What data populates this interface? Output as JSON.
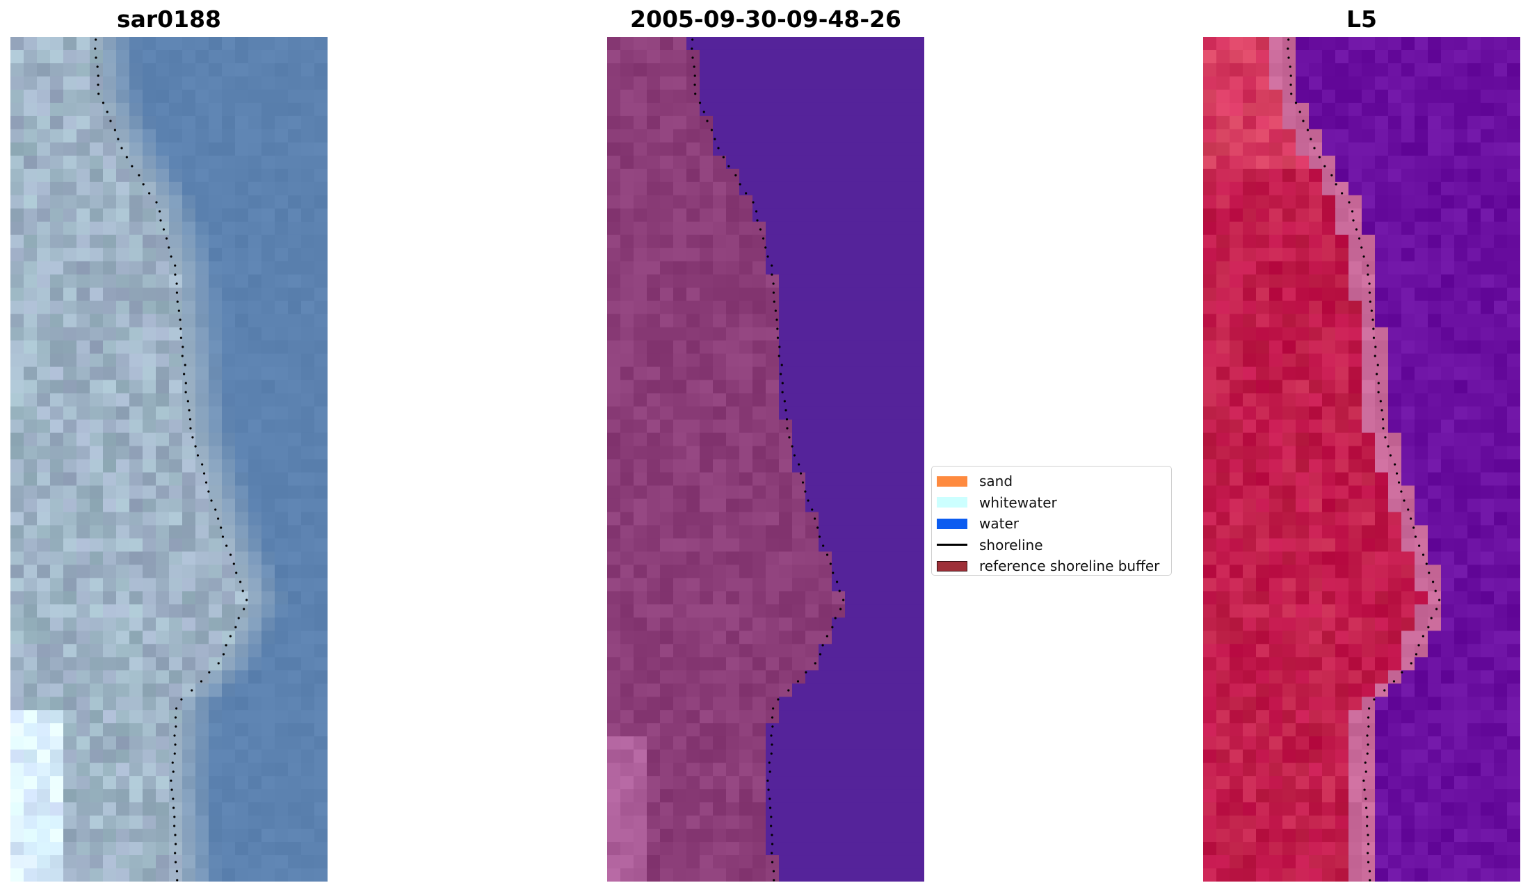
{
  "panels": [
    {
      "title": "sar0188",
      "image": "rgb-satellite-image"
    },
    {
      "title": "2005-09-30-09-48-26",
      "image": "classified-image-overlay"
    },
    {
      "title": "L5",
      "image": "mndwi-index-image"
    }
  ],
  "legend": {
    "items": [
      {
        "label": "sand",
        "kind": "patch",
        "color": "#fe8a3f"
      },
      {
        "label": "whitewater",
        "kind": "patch",
        "color": "#ccffff"
      },
      {
        "label": "water",
        "kind": "patch",
        "color": "#0c5cf0"
      },
      {
        "label": "shoreline",
        "kind": "line",
        "color": "#000000"
      },
      {
        "label": "reference shoreline buffer",
        "kind": "patch",
        "color": "#9e3039"
      }
    ]
  },
  "colors": {
    "sar_land": "#9fb4c6",
    "sar_water": "#5c82b0",
    "class_land": "#8b3d78",
    "class_water": "#55239a",
    "index_land": "#c21d4c",
    "index_edge": "#c96a9a",
    "index_water": "#6a0fa0",
    "shoreline_dots": "#000000"
  }
}
